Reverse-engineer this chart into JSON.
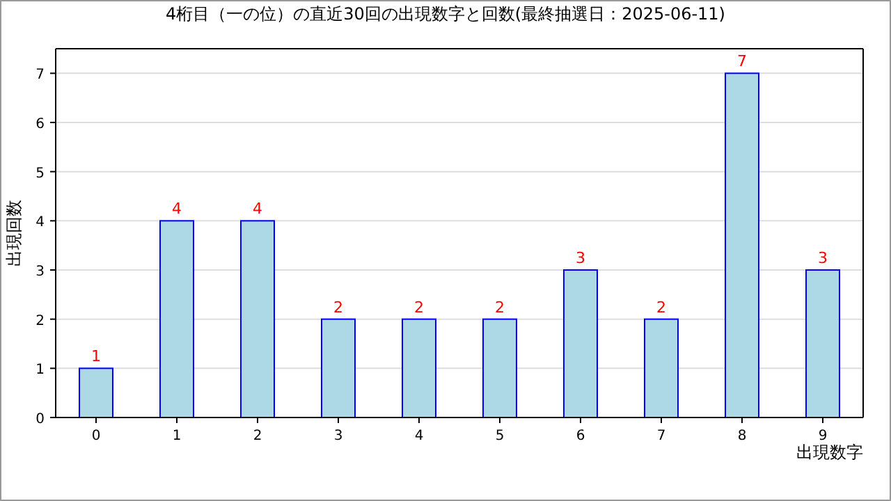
{
  "chart_data": {
    "type": "bar",
    "title": "4桁目（一の位）の直近30回の出現数字と回数(最終抽選日：2025-06-11)",
    "xlabel": "出現数字",
    "ylabel": "出現回数",
    "categories": [
      "0",
      "1",
      "2",
      "3",
      "4",
      "5",
      "6",
      "7",
      "8",
      "9"
    ],
    "values": [
      1,
      4,
      4,
      2,
      2,
      2,
      3,
      2,
      7,
      3
    ],
    "color": "#add8e6",
    "ylim": [
      0,
      7.5
    ],
    "yticks": [
      0,
      1,
      2,
      3,
      4,
      5,
      6,
      7
    ],
    "grid": "y",
    "data_labels": true
  }
}
